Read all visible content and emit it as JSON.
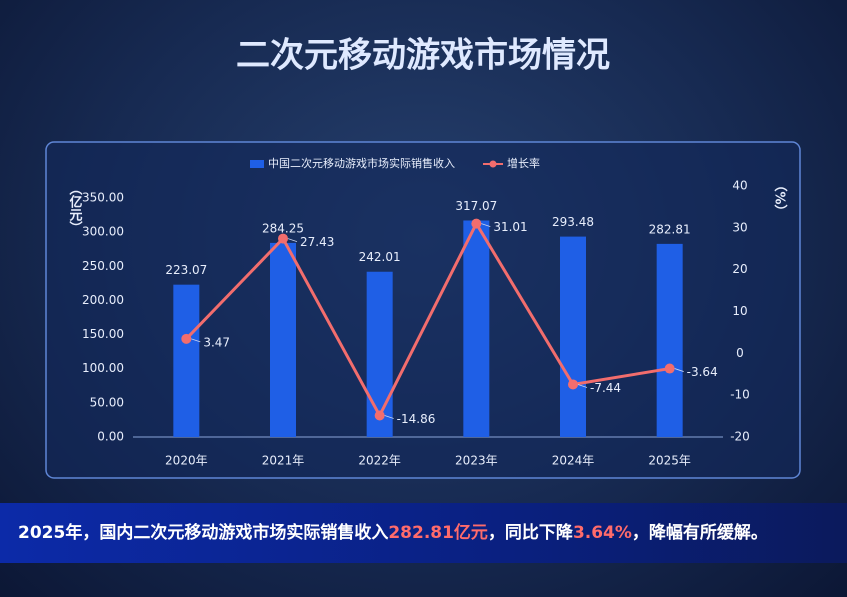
{
  "chart_data": {
    "type": "combo",
    "title": "二次元移动游戏市场情况",
    "categories": [
      "2020年",
      "2021年",
      "2022年",
      "2023年",
      "2024年",
      "2025年"
    ],
    "series": [
      {
        "name": "中国二次元移动游戏市场实际销售收入",
        "type": "bar",
        "color": "#1f5fe6",
        "values": [
          223.07,
          284.25,
          242.01,
          317.07,
          293.48,
          282.81
        ]
      },
      {
        "name": "增长率",
        "type": "line",
        "axis": "y2",
        "color": "#f26d6d",
        "values": [
          3.47,
          27.43,
          -14.86,
          31.01,
          -7.44,
          -3.64
        ]
      }
    ],
    "ylabel": "（亿元）",
    "y2label": "（%）",
    "ylim": [
      0,
      350
    ],
    "yticks": [
      {
        "value": 0,
        "label": "0.00"
      },
      {
        "value": 50,
        "label": "50.00"
      },
      {
        "value": 100,
        "label": "100.00"
      },
      {
        "value": 150,
        "label": "150.00"
      },
      {
        "value": 200,
        "label": "200.00"
      },
      {
        "value": 250,
        "label": "250.00"
      },
      {
        "value": 300,
        "label": "300.00"
      },
      {
        "value": 350,
        "label": "350.00"
      }
    ],
    "y2lim": [
      -20,
      40
    ],
    "y2ticks": [
      -20,
      -10,
      0,
      10,
      20,
      30,
      40
    ],
    "legend": "top",
    "grid": false
  },
  "summary": [
    {
      "text": "2025年，国内二次元移动游戏市场实际销售收入",
      "color": "#ffffff"
    },
    {
      "text": "282.81亿元",
      "color": "#ff6b6b"
    },
    {
      "text": "，同比下降",
      "color": "#ffffff"
    },
    {
      "text": "3.64%",
      "color": "#ff6b6b"
    },
    {
      "text": "，降幅有所缓解。",
      "color": "#ffffff"
    }
  ]
}
